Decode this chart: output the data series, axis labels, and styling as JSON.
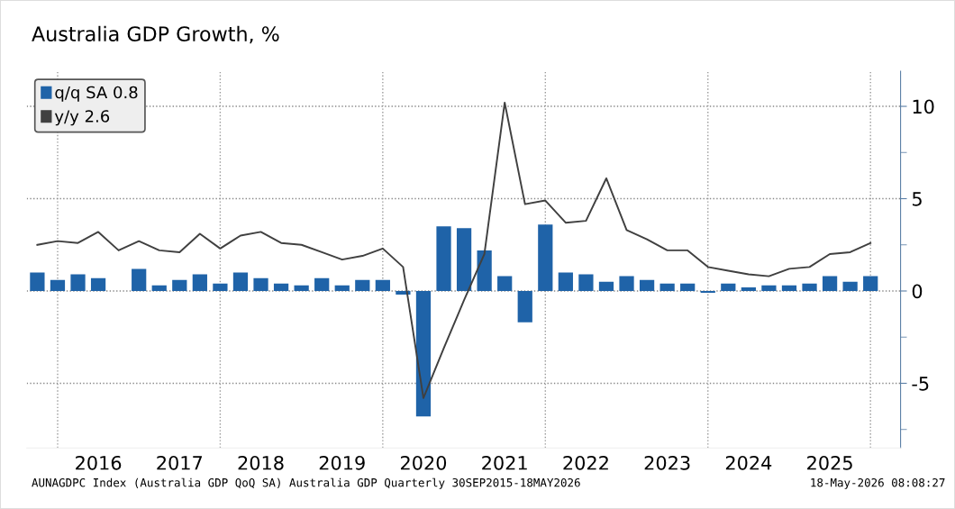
{
  "chart_data": {
    "type": "bar",
    "title": "Australia GDP Growth, %",
    "x": [
      2015.75,
      2016.0,
      2016.25,
      2016.5,
      2016.75,
      2017.0,
      2017.25,
      2017.5,
      2017.75,
      2018.0,
      2018.25,
      2018.5,
      2018.75,
      2019.0,
      2019.25,
      2019.5,
      2019.75,
      2020.0,
      2020.25,
      2020.5,
      2020.75,
      2021.0,
      2021.25,
      2021.5,
      2021.75,
      2022.0,
      2022.25,
      2022.5,
      2022.75,
      2023.0,
      2023.25,
      2023.5,
      2023.75,
      2024.0,
      2024.25,
      2024.5,
      2024.75,
      2025.0,
      2025.25,
      2025.5,
      2025.75,
      2026.0
    ],
    "series": [
      {
        "name": "q/q SA 0.8",
        "color": "#1f63a8",
        "values": [
          1.0,
          0.6,
          0.9,
          0.7,
          0.0,
          1.2,
          0.3,
          0.6,
          0.9,
          0.4,
          1.0,
          0.7,
          0.4,
          0.3,
          0.7,
          0.3,
          0.6,
          0.6,
          -0.2,
          -6.8,
          3.5,
          3.4,
          2.2,
          0.8,
          -1.7,
          3.6,
          1.0,
          0.9,
          0.5,
          0.8,
          0.6,
          0.4,
          0.4,
          -0.1,
          0.4,
          0.2,
          0.3,
          0.3,
          0.4,
          0.8,
          0.5,
          0.8
        ]
      },
      {
        "name": "y/y 2.6",
        "type": "line",
        "color": "#404040",
        "values": [
          2.5,
          2.7,
          2.6,
          3.2,
          2.2,
          2.7,
          2.2,
          2.1,
          3.1,
          2.3,
          3.0,
          3.2,
          2.6,
          2.5,
          2.1,
          1.7,
          1.9,
          2.3,
          1.3,
          -5.8,
          -3.1,
          -0.5,
          2.0,
          10.2,
          4.7,
          4.9,
          3.7,
          3.8,
          6.1,
          3.3,
          2.8,
          2.2,
          2.2,
          1.3,
          1.1,
          0.9,
          0.8,
          1.2,
          1.3,
          2.0,
          2.1,
          2.6
        ]
      }
    ],
    "xlim": [
      2015.62,
      2026.37
    ],
    "xticks": [
      {
        "value": 2016.5,
        "label": "2016"
      },
      {
        "value": 2017.5,
        "label": "2017"
      },
      {
        "value": 2018.5,
        "label": "2018"
      },
      {
        "value": 2019.5,
        "label": "2019"
      },
      {
        "value": 2020.5,
        "label": "2020"
      },
      {
        "value": 2021.5,
        "label": "2021"
      },
      {
        "value": 2022.5,
        "label": "2022"
      },
      {
        "value": 2023.5,
        "label": "2023"
      },
      {
        "value": 2024.5,
        "label": "2024"
      },
      {
        "value": 2025.5,
        "label": "2025"
      }
    ],
    "ylim": [
      -8.5,
      11.9
    ],
    "yticks": [
      {
        "value": -7.5,
        "label": null
      },
      -5,
      {
        "value": -2.5,
        "label": null
      },
      0,
      {
        "value": 2.5,
        "label": null
      },
      5,
      {
        "value": 7.5,
        "label": null
      },
      10
    ],
    "ref_lines": [
      {
        "axis": "x",
        "value": 2016,
        "line_style": "dotted",
        "color": "#999999"
      },
      {
        "axis": "x",
        "value": 2018,
        "line_style": "dotted",
        "color": "#999999"
      },
      {
        "axis": "x",
        "value": 2020,
        "line_style": "dotted",
        "color": "#999999"
      },
      {
        "axis": "x",
        "value": 2022,
        "line_style": "dotted",
        "color": "#999999"
      },
      {
        "axis": "x",
        "value": 2024,
        "line_style": "dotted",
        "color": "#999999"
      },
      {
        "axis": "x",
        "value": 2026,
        "line_style": "dotted",
        "color": "#999999"
      }
    ],
    "grid": "y",
    "legend": "top left",
    "annotations": [
      "AUNAGDPC Index (Australia GDP QoQ SA) Australia GDP Quarterly 30SEP2015-18MAY2026",
      "18-May-2026 08:08:27"
    ]
  }
}
